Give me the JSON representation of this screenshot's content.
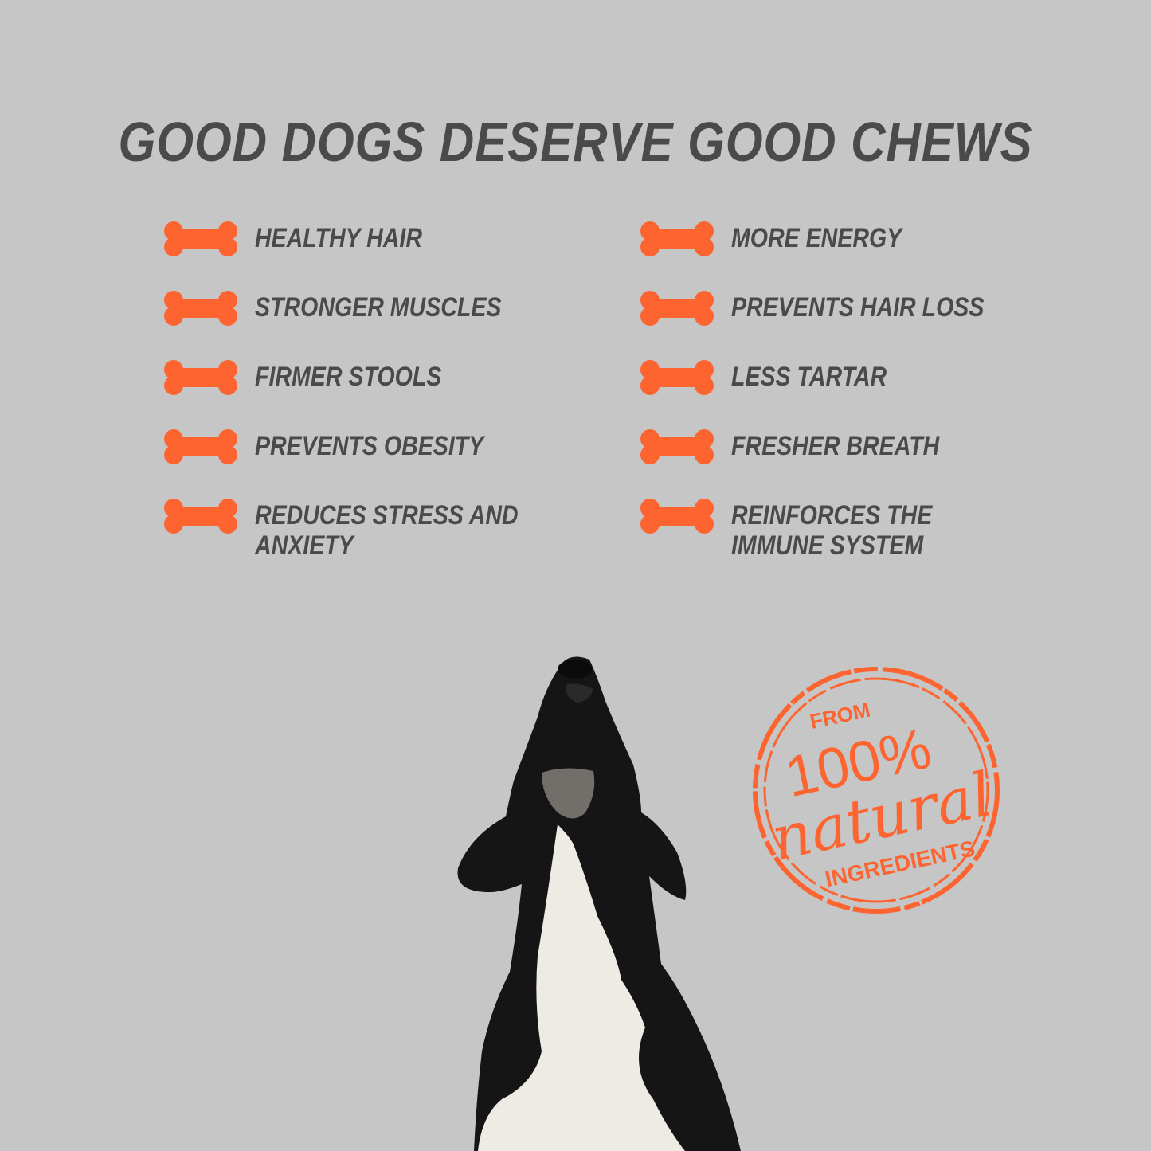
{
  "title": "GOOD DOGS DESERVE GOOD CHEWS",
  "benefits_left": [
    {
      "label": "Healthy hair"
    },
    {
      "label": "Stronger muscles"
    },
    {
      "label": "Firmer stools"
    },
    {
      "label": "Prevents obesity"
    },
    {
      "label": "Reduces stress and",
      "label2": "anxiety"
    }
  ],
  "benefits_right": [
    {
      "label": "More energy"
    },
    {
      "label": "Prevents hair loss"
    },
    {
      "label": "Less tartar"
    },
    {
      "label": "Fresher breath"
    },
    {
      "label": "Reinforces the",
      "label2": "immune system"
    }
  ],
  "stamp": {
    "top": "FROM",
    "percent": "100%",
    "script": "natural",
    "bottom": "INGREDIENTS"
  },
  "colors": {
    "accent": "#fd6430",
    "text": "#4a4a4a",
    "background": "#c5c6c5"
  },
  "icons": {
    "bullet": "bone-icon"
  }
}
